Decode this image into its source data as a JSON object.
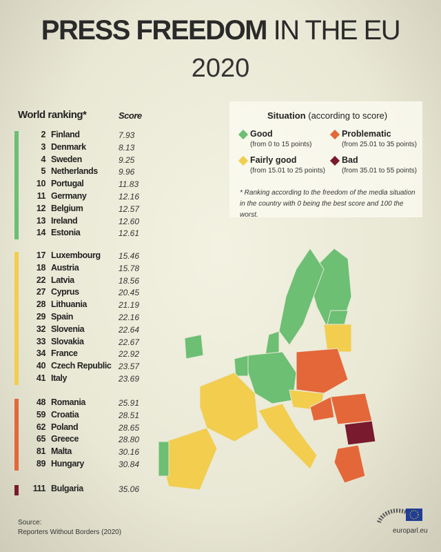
{
  "header": {
    "title_bold": "PRESS FREEDOM",
    "title_light": "IN THE EU",
    "year": "2020"
  },
  "table": {
    "rank_header": "World ranking*",
    "score_header": "Score",
    "groups": [
      {
        "color": "#6cbf73",
        "rows": [
          [
            "2",
            "Finland",
            "7.93"
          ],
          [
            "3",
            "Denmark",
            "8.13"
          ],
          [
            "4",
            "Sweden",
            "9.25"
          ],
          [
            "5",
            "Netherlands",
            "9.96"
          ],
          [
            "10",
            "Portugal",
            "11.83"
          ],
          [
            "11",
            "Germany",
            "12.16"
          ],
          [
            "12",
            "Belgium",
            "12.57"
          ],
          [
            "13",
            "Ireland",
            "12.60"
          ],
          [
            "14",
            "Estonia",
            "12.61"
          ]
        ]
      },
      {
        "color": "#f2cd4e",
        "rows": [
          [
            "17",
            "Luxembourg",
            "15.46"
          ],
          [
            "18",
            "Austria",
            "15.78"
          ],
          [
            "22",
            "Latvia",
            "18.56"
          ],
          [
            "27",
            "Cyprus",
            "20.45"
          ],
          [
            "28",
            "Lithuania",
            "21.19"
          ],
          [
            "29",
            "Spain",
            "22.16"
          ],
          [
            "32",
            "Slovenia",
            "22.64"
          ],
          [
            "33",
            "Slovakia",
            "22.67"
          ],
          [
            "34",
            "France",
            "22.92"
          ],
          [
            "40",
            "Czech Republic",
            "23.57"
          ],
          [
            "41",
            "Italy",
            "23.69"
          ]
        ]
      },
      {
        "color": "#e4673a",
        "rows": [
          [
            "48",
            "Romania",
            "25.91"
          ],
          [
            "59",
            "Croatia",
            "28.51"
          ],
          [
            "62",
            "Poland",
            "28.65"
          ],
          [
            "65",
            "Greece",
            "28.80"
          ],
          [
            "81",
            "Malta",
            "30.16"
          ],
          [
            "89",
            "Hungary",
            "30.84"
          ]
        ]
      },
      {
        "color": "#7a1a2e",
        "rows": [
          [
            "111",
            "Bulgaria",
            "35.06"
          ]
        ]
      }
    ]
  },
  "legend": {
    "title": "Situation",
    "subtitle": "(according to score)",
    "items": [
      {
        "label": "Good",
        "range": "(from 0 to 15 points)",
        "color": "#6cbf73"
      },
      {
        "label": "Problematic",
        "range": "(from 25.01 to 35 points)",
        "color": "#e4673a"
      },
      {
        "label": "Fairly good",
        "range": "(from 15.01 to 25 points)",
        "color": "#f2cd4e"
      },
      {
        "label": "Bad",
        "range": "(from 35.01 to 55 points)",
        "color": "#7a1a2e"
      }
    ],
    "note": "* Ranking according to the freedom of the media situation in the country with 0 being the best score and 100 the worst."
  },
  "footer": {
    "source_label": "Source:",
    "source": "Reporters Without Borders (2020)",
    "site": "europarl.eu"
  }
}
